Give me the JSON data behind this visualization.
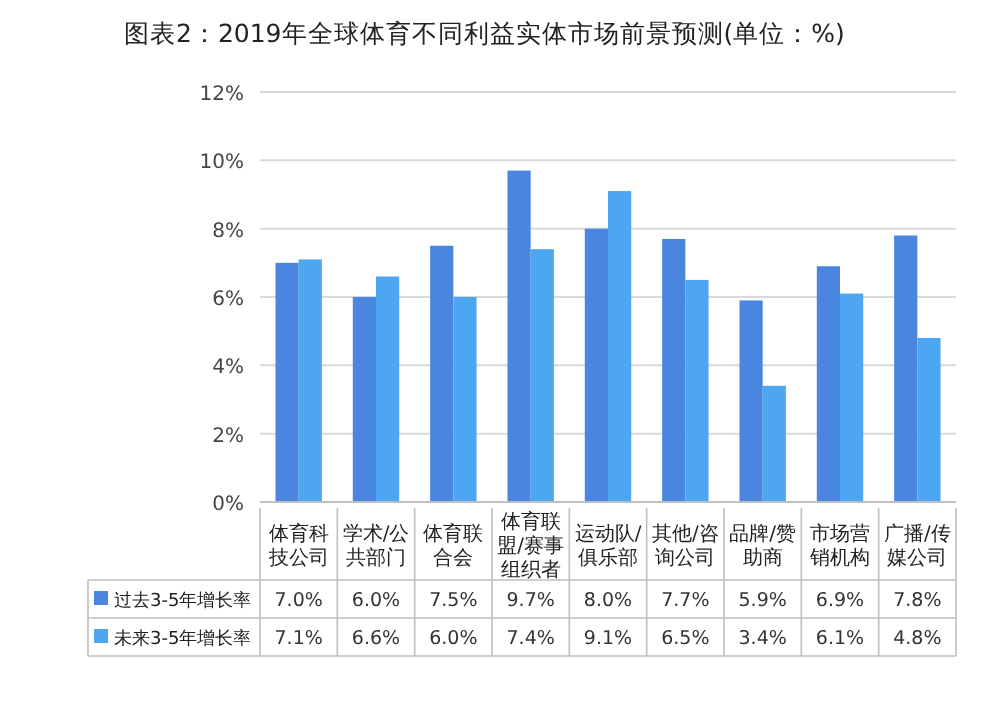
{
  "chart_data": {
    "type": "bar",
    "title": "图表2：2019年全球体育不同利益实体市场前景预测(单位：%)",
    "categories": [
      "体育科技公司",
      "学术/公共部门",
      "体育联合会",
      "体育联盟/赛事组织者",
      "运动队/俱乐部",
      "其他/咨询公司",
      "品牌/赞助商",
      "市场营销机构",
      "广播/传媒公司"
    ],
    "series": [
      {
        "name": "过去3-5年增长率",
        "color": "#4a86e0",
        "values": [
          7.0,
          6.0,
          7.5,
          9.7,
          8.0,
          7.7,
          5.9,
          6.9,
          7.8
        ],
        "value_labels": [
          "7.0%",
          "6.0%",
          "7.5%",
          "9.7%",
          "8.0%",
          "7.7%",
          "5.9%",
          "6.9%",
          "7.8%"
        ]
      },
      {
        "name": "未来3-5年增长率",
        "color": "#4da6f2",
        "values": [
          7.1,
          6.6,
          6.0,
          7.4,
          9.1,
          6.5,
          3.4,
          6.1,
          4.8
        ],
        "value_labels": [
          "7.1%",
          "6.6%",
          "6.0%",
          "7.4%",
          "9.1%",
          "6.5%",
          "3.4%",
          "6.1%",
          "4.8%"
        ]
      }
    ],
    "ylim": [
      0,
      12
    ],
    "yticks": [
      {
        "value": 0,
        "label": "0%"
      },
      {
        "value": 2,
        "label": "2%"
      },
      {
        "value": 4,
        "label": "4%"
      },
      {
        "value": 6,
        "label": "6%"
      },
      {
        "value": 8,
        "label": "8%"
      },
      {
        "value": 10,
        "label": "10%"
      },
      {
        "value": 12,
        "label": "12%"
      }
    ],
    "grid": "y",
    "legend": "bottom"
  }
}
